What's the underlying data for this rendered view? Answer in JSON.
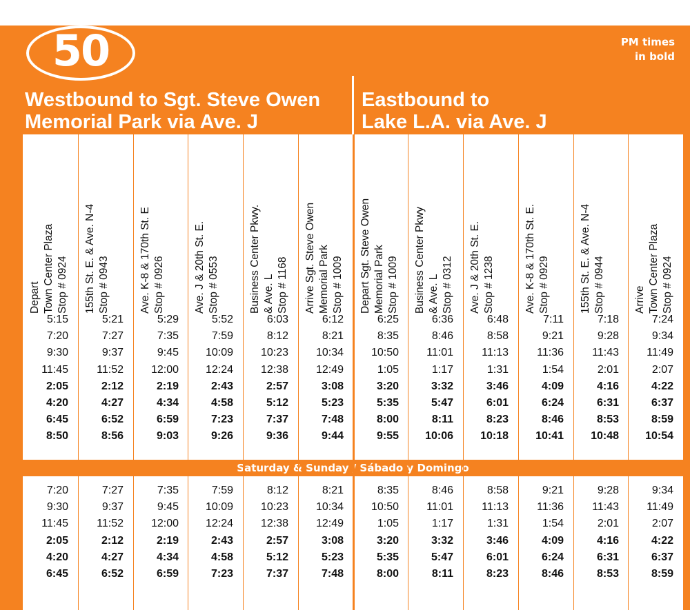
{
  "route": {
    "number": "50"
  },
  "pm_note": [
    "PM times",
    "in bold"
  ],
  "westbound_title": [
    "Westbound to Sgt. Steve Owen",
    "Memorial Park via Ave. J"
  ],
  "eastbound_title": [
    "Eastbound to",
    "Lake L.A. via Ave. J"
  ],
  "weekend_label": "Saturday & Sunday / Sábado y Domingo",
  "columns": [
    {
      "lines": [
        "Depart",
        "Town Center Plaza",
        "Stop # 0924"
      ]
    },
    {
      "lines": [
        "155th St. E. & Ave. N-4",
        "Stop # 0943"
      ]
    },
    {
      "lines": [
        "Ave. K-8 & 170th St. E",
        "Stop # 0926"
      ]
    },
    {
      "lines": [
        "Ave. J & 20th St. E.",
        "Stop # 0553"
      ]
    },
    {
      "lines": [
        "Business Center Pkwy.",
        "& Ave. L",
        "Stop # 1168"
      ]
    },
    {
      "lines": [
        "Arrive Sgt. Steve Owen",
        "Memorial Park",
        "Stop # 1009"
      ]
    },
    {
      "lines": [
        "Depart Sgt. Steve Owen",
        "Memorial Park",
        "Stop # 1009"
      ]
    },
    {
      "lines": [
        "Business Center Pkwy",
        "& Ave. L",
        "Stop # 0312"
      ]
    },
    {
      "lines": [
        "Ave. J & 20th St. E.",
        "Stop # 1238"
      ]
    },
    {
      "lines": [
        "Ave. K-8 & 170th St. E.",
        "Stop # 0929"
      ]
    },
    {
      "lines": [
        "155th St. E. & Ave. N-4",
        "Stop # 0944"
      ]
    },
    {
      "lines": [
        "Arrive",
        "Town Center Plaza",
        "Stop # 0924"
      ]
    }
  ],
  "weekday_pm_from_row": 4,
  "weekday_rows": [
    [
      "5:15",
      "5:21",
      "5:29",
      "5:52",
      "6:03",
      "6:12",
      "6:25",
      "6:36",
      "6:48",
      "7:11",
      "7:18",
      "7:24"
    ],
    [
      "7:20",
      "7:27",
      "7:35",
      "7:59",
      "8:12",
      "8:21",
      "8:35",
      "8:46",
      "8:58",
      "9:21",
      "9:28",
      "9:34"
    ],
    [
      "9:30",
      "9:37",
      "9:45",
      "10:09",
      "10:23",
      "10:34",
      "10:50",
      "11:01",
      "11:13",
      "11:36",
      "11:43",
      "11:49"
    ],
    [
      "11:45",
      "11:52",
      "12:00",
      "12:24",
      "12:38",
      "12:49",
      "1:05",
      "1:17",
      "1:31",
      "1:54",
      "2:01",
      "2:07"
    ],
    [
      "2:05",
      "2:12",
      "2:19",
      "2:43",
      "2:57",
      "3:08",
      "3:20",
      "3:32",
      "3:46",
      "4:09",
      "4:16",
      "4:22"
    ],
    [
      "4:20",
      "4:27",
      "4:34",
      "4:58",
      "5:12",
      "5:23",
      "5:35",
      "5:47",
      "6:01",
      "6:24",
      "6:31",
      "6:37"
    ],
    [
      "6:45",
      "6:52",
      "6:59",
      "7:23",
      "7:37",
      "7:48",
      "8:00",
      "8:11",
      "8:23",
      "8:46",
      "8:53",
      "8:59"
    ],
    [
      "8:50",
      "8:56",
      "9:03",
      "9:26",
      "9:36",
      "9:44",
      "9:55",
      "10:06",
      "10:18",
      "10:41",
      "10:48",
      "10:54"
    ]
  ],
  "weekend_pm_from_row": 3,
  "weekend_rows": [
    [
      "7:20",
      "7:27",
      "7:35",
      "7:59",
      "8:12",
      "8:21",
      "8:35",
      "8:46",
      "8:58",
      "9:21",
      "9:28",
      "9:34"
    ],
    [
      "9:30",
      "9:37",
      "9:45",
      "10:09",
      "10:23",
      "10:34",
      "10:50",
      "11:01",
      "11:13",
      "11:36",
      "11:43",
      "11:49"
    ],
    [
      "11:45",
      "11:52",
      "12:00",
      "12:24",
      "12:38",
      "12:49",
      "1:05",
      "1:17",
      "1:31",
      "1:54",
      "2:01",
      "2:07"
    ],
    [
      "2:05",
      "2:12",
      "2:19",
      "2:43",
      "2:57",
      "3:08",
      "3:20",
      "3:32",
      "3:46",
      "4:09",
      "4:16",
      "4:22"
    ],
    [
      "4:20",
      "4:27",
      "4:34",
      "4:58",
      "5:12",
      "5:23",
      "5:35",
      "5:47",
      "6:01",
      "6:24",
      "6:31",
      "6:37"
    ],
    [
      "6:45",
      "6:52",
      "6:59",
      "7:23",
      "7:37",
      "7:48",
      "8:00",
      "8:11",
      "8:23",
      "8:46",
      "8:53",
      "8:59"
    ]
  ],
  "colors": {
    "accent": "#f58220",
    "text": "#111111",
    "background": "#ffffff"
  }
}
